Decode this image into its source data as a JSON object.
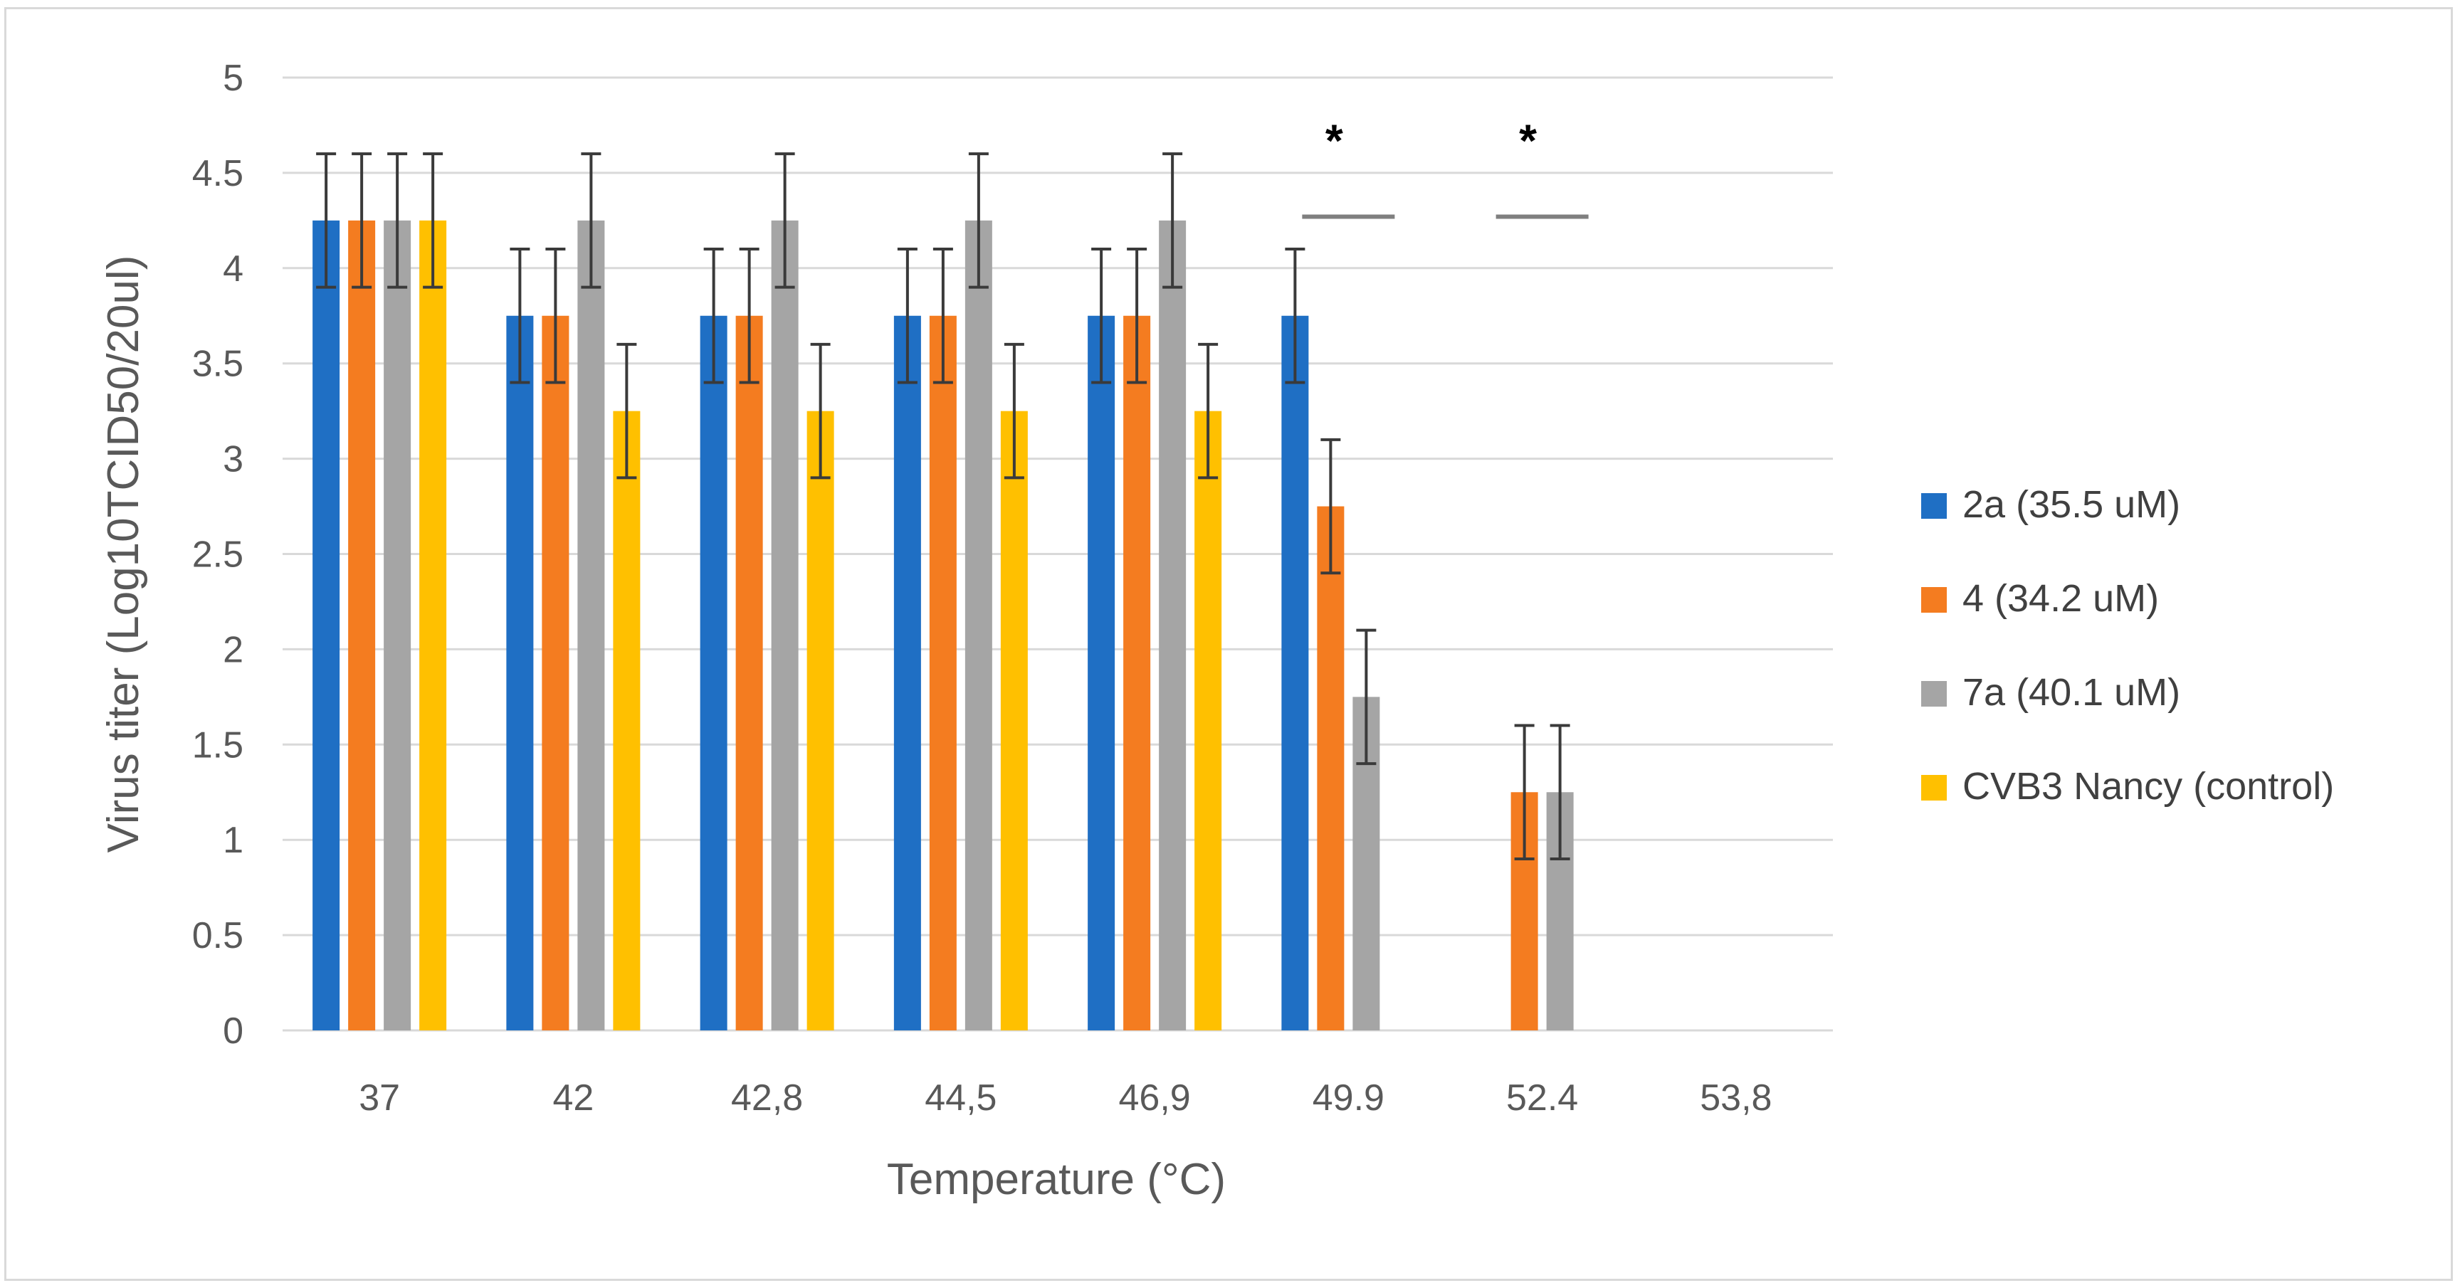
{
  "chart_data": {
    "type": "bar",
    "title": "",
    "xlabel": "Temperature (°C)",
    "ylabel": "Virus titer (Log10TCID50/20ul)",
    "ylim": [
      0,
      5
    ],
    "yticks": [
      "0",
      "0.5",
      "1",
      "1.5",
      "2",
      "2.5",
      "3",
      "3.5",
      "4",
      "4.5",
      "5"
    ],
    "grid": true,
    "legend_position": "right",
    "categories": [
      "37",
      "42",
      "42,8",
      "44,5",
      "46,9",
      "49.9",
      "52.4",
      "53,8"
    ],
    "series": [
      {
        "name": "2a (35.5 uM)",
        "color": "#1f6fc4",
        "values": [
          4.25,
          3.75,
          3.75,
          3.75,
          3.75,
          3.75,
          0,
          0
        ],
        "error": [
          0.35,
          0.35,
          0.35,
          0.35,
          0.35,
          0.35,
          null,
          null
        ]
      },
      {
        "name": "4 (34.2 uM)",
        "color": "#f47c20",
        "values": [
          4.25,
          3.75,
          3.75,
          3.75,
          3.75,
          2.75,
          1.25,
          0
        ],
        "error": [
          0.35,
          0.35,
          0.35,
          0.35,
          0.35,
          0.35,
          0.35,
          null
        ]
      },
      {
        "name": "7a (40.1 uM)",
        "color": "#a5a5a5",
        "values": [
          4.25,
          4.25,
          4.25,
          4.25,
          4.25,
          1.75,
          1.25,
          0
        ],
        "error": [
          0.35,
          0.35,
          0.35,
          0.35,
          0.35,
          0.35,
          0.35,
          null
        ]
      },
      {
        "name": "CVB3 Nancy (control)",
        "color": "#ffc000",
        "values": [
          4.25,
          3.25,
          3.25,
          3.25,
          3.25,
          0,
          0,
          0
        ],
        "error": [
          0.35,
          0.35,
          0.35,
          0.35,
          0.35,
          null,
          null,
          null
        ]
      }
    ],
    "annotations": [
      {
        "category": "49.9",
        "text": "*",
        "line_value": 4.27
      },
      {
        "category": "52.4",
        "text": "*",
        "line_value": 4.27
      }
    ]
  }
}
